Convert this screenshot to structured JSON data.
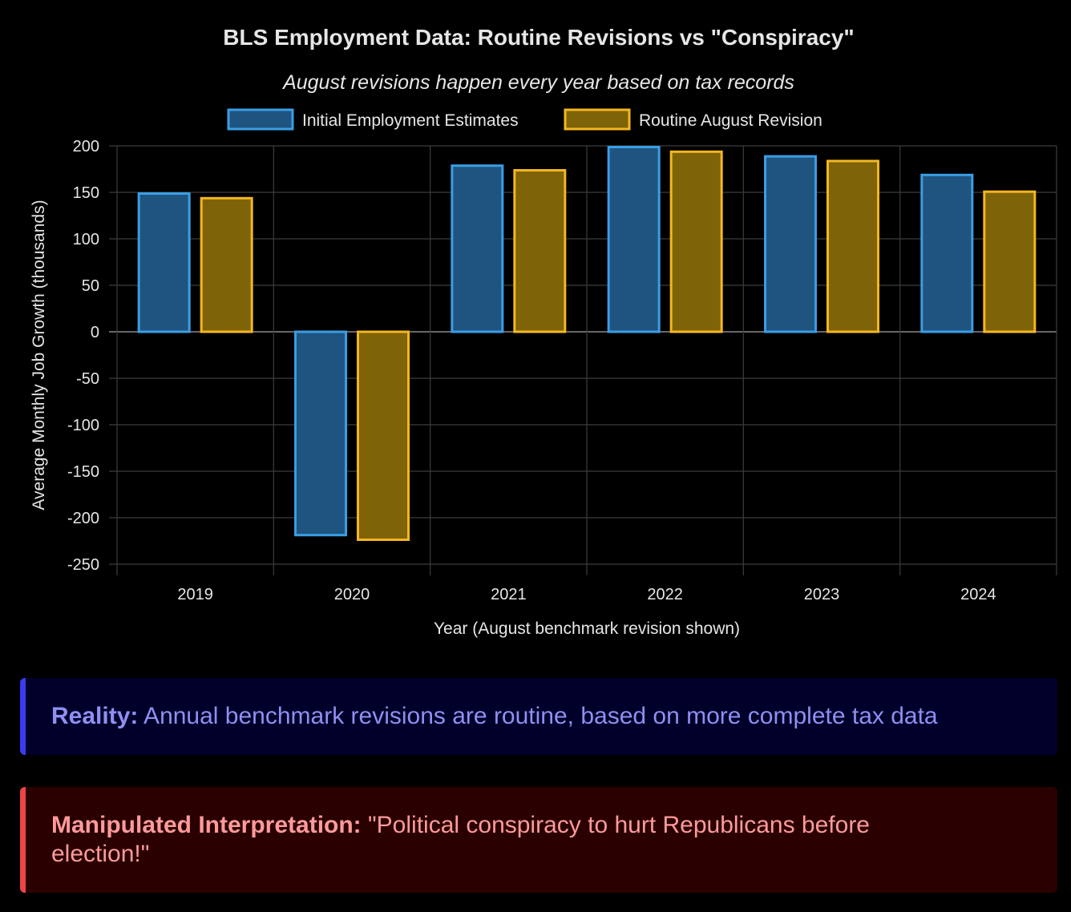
{
  "chart_data": {
    "type": "bar",
    "title": "BLS Employment Data: Routine Revisions vs \"Conspiracy\"",
    "subtitle": "August revisions happen every year based on tax records",
    "xlabel": "Year (August benchmark revision shown)",
    "ylabel": "Average Monthly Job Growth (thousands)",
    "categories": [
      "2019",
      "2020",
      "2021",
      "2022",
      "2023",
      "2024"
    ],
    "ylim": [
      -250,
      200
    ],
    "yticks": [
      200,
      150,
      100,
      50,
      0,
      -50,
      -100,
      -150,
      -200,
      -250
    ],
    "grid": true,
    "legend_position": "top-center",
    "series": [
      {
        "name": "Initial Employment Estimates",
        "values": [
          150,
          -220,
          180,
          200,
          190,
          170
        ],
        "fill": "#1f5480",
        "stroke": "#3a9ee4"
      },
      {
        "name": "Routine August Revision",
        "values": [
          145,
          -225,
          175,
          195,
          185,
          152
        ],
        "fill": "#7f6308",
        "stroke": "#f3b720"
      }
    ]
  },
  "callouts": {
    "reality": {
      "label": "Reality:",
      "text": " Annual benchmark revisions are routine, based on more complete tax data"
    },
    "manipulated": {
      "label": "Manipulated Interpretation:",
      "text": " \"Political conspiracy to hurt Republicans before election!\""
    }
  }
}
